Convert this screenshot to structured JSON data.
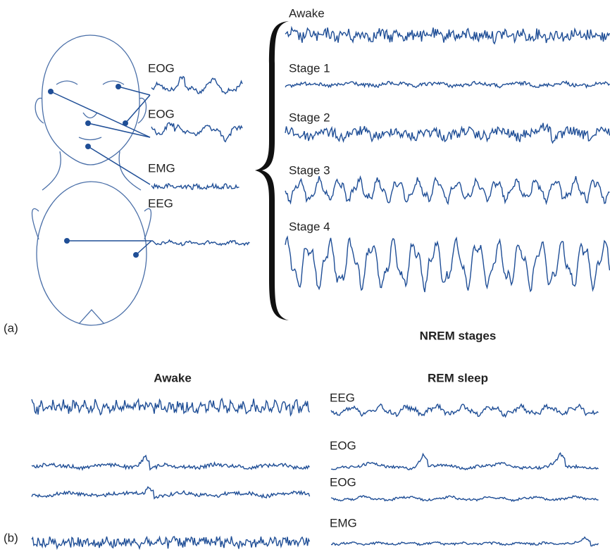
{
  "panel_a": {
    "label": "(a)",
    "electrodes": [
      "EOG",
      "EOG",
      "EMG",
      "EEG"
    ],
    "stages": [
      "Awake",
      "Stage 1",
      "Stage 2",
      "Stage 3",
      "Stage 4"
    ],
    "caption": "NREM stages"
  },
  "panel_b": {
    "label": "(b)",
    "awake_title": "Awake",
    "rem_title": "REM sleep",
    "rem_channels": [
      "EEG",
      "EOG",
      "EOG",
      "EMG"
    ]
  }
}
